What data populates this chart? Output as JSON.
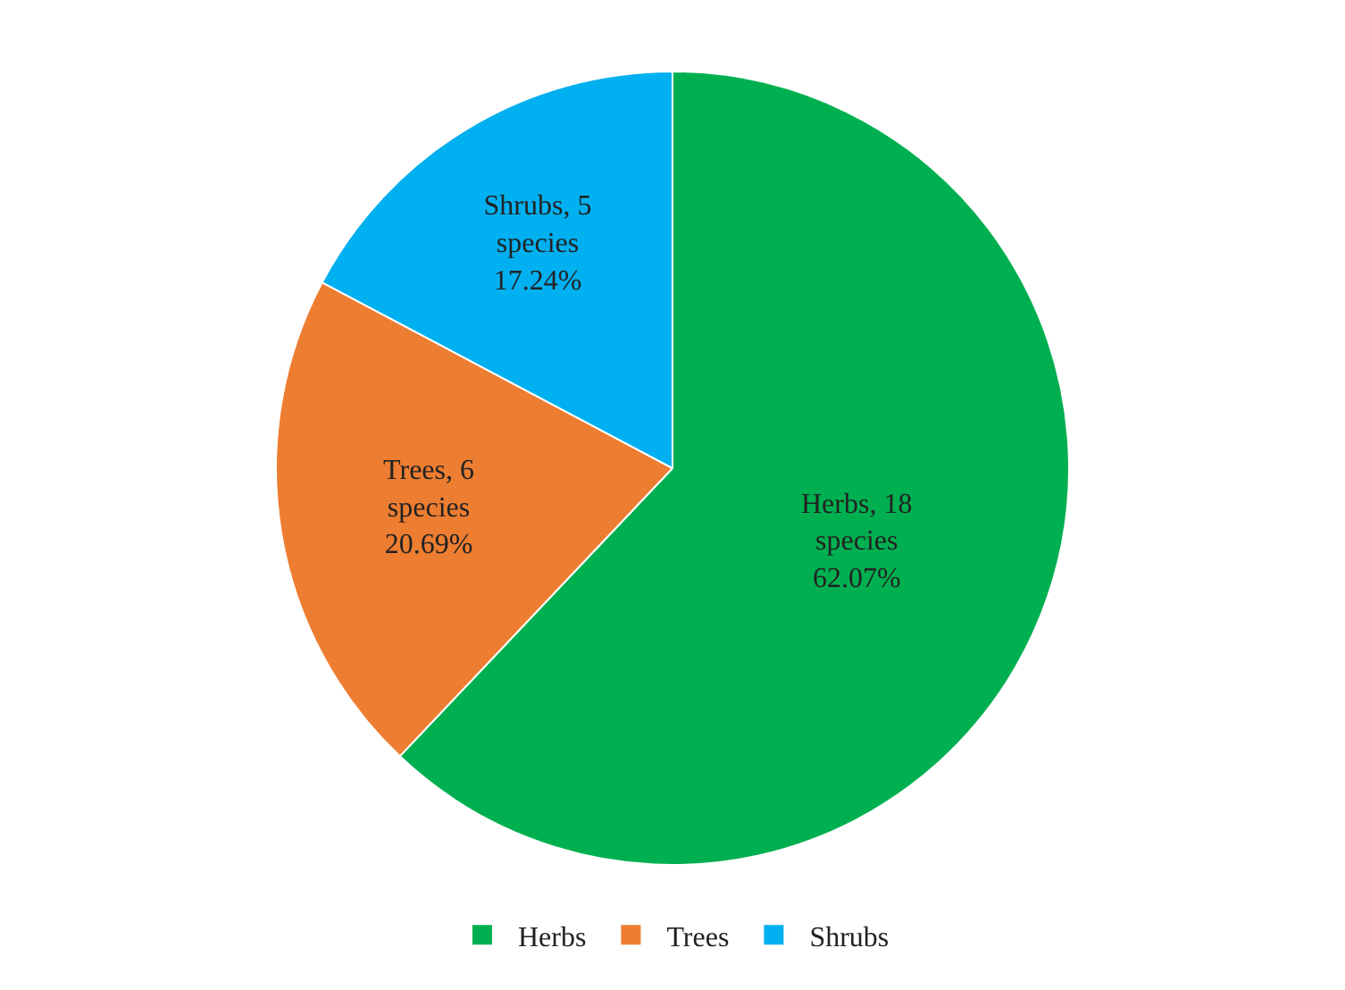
{
  "chart_data": {
    "type": "pie",
    "categories": [
      "Herbs",
      "Trees",
      "Shrubs"
    ],
    "values": [
      18,
      6,
      5
    ],
    "colors": [
      "#00b050",
      "#ed7d31",
      "#00b0f0"
    ],
    "value_labels": [
      "Herbs, 18 species 62.07%",
      "Trees, 6 species 20.69%",
      "Shrubs, 5 species 17.24%"
    ],
    "legend": "bottom"
  }
}
